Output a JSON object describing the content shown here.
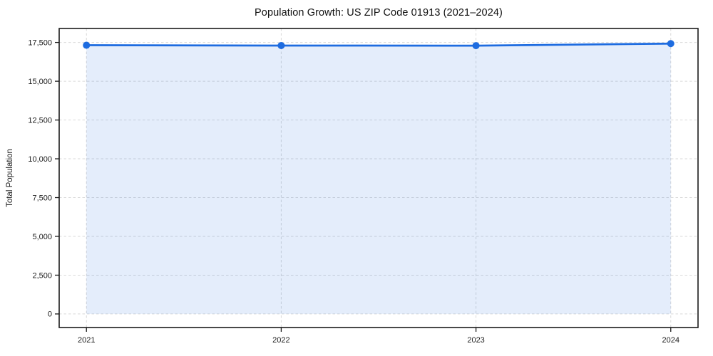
{
  "chart_data": {
    "type": "line",
    "title": "Population Growth: US ZIP Code 01913 (2021–2024)",
    "xlabel": "",
    "ylabel": "Total Population",
    "x": [
      2021,
      2022,
      2023,
      2024
    ],
    "series": [
      {
        "name": "Total Population",
        "values": [
          17320,
          17300,
          17295,
          17425
        ]
      }
    ],
    "xtick_labels": [
      "2021",
      "2022",
      "2023",
      "2024"
    ],
    "ytick_values": [
      0,
      2500,
      5000,
      7500,
      10000,
      12500,
      15000,
      17500
    ],
    "ytick_labels": [
      "0",
      "2,500",
      "5,000",
      "7,500",
      "10,000",
      "12,500",
      "15,000",
      "17,500"
    ],
    "xlim": [
      2020.86,
      2024.14
    ],
    "ylim": [
      -875,
      18400
    ],
    "grid": true,
    "grid_style": "dashed",
    "legend": "none",
    "marker": "circle",
    "area_fill": true,
    "colors": {
      "line": "#1e6ce0",
      "marker": "#1e6ce0",
      "area_fill": "#1e6ce0",
      "area_fill_opacity": 0.12,
      "grid": "#d9d9d9",
      "axis": "#1a1a1a",
      "text": "#1a1a1a",
      "background": "#ffffff"
    }
  }
}
